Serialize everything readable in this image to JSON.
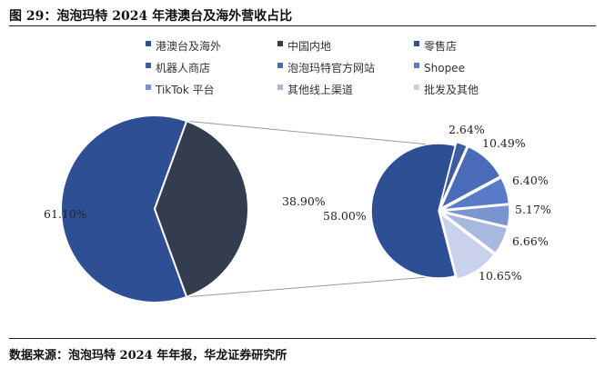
{
  "header": {
    "title": "图 29：泡泡玛特 2024 年港澳台及海外营收占比"
  },
  "footer": {
    "source": "数据来源：泡泡玛特 2024 年年报，华龙证券研究所"
  },
  "chart_data": {
    "type": "pie-of-pie",
    "legend": [
      {
        "name": "港澳台及海外",
        "color": "#2f4f95"
      },
      {
        "name": "中国内地",
        "color": "#333d4f"
      },
      {
        "name": "零售店",
        "color": "#2f4f95"
      },
      {
        "name": "机器人商店",
        "color": "#3d5d9e"
      },
      {
        "name": "泡泡玛特官方网站",
        "color": "#4a6bb8"
      },
      {
        "name": "Shopee",
        "color": "#5a7cc8"
      },
      {
        "name": "TikTok 平台",
        "color": "#7b95d0"
      },
      {
        "name": "其他线上渠道",
        "color": "#a9b8df"
      },
      {
        "name": "批发及其他",
        "color": "#c9d2ea"
      }
    ],
    "main_pie": {
      "slices": [
        {
          "name": "港澳台及海外",
          "value": 61.1,
          "label": "61.10%",
          "color": "#2f4f95"
        },
        {
          "name": "中国内地",
          "value": 38.9,
          "label": "38.90%",
          "color": "#333d4f"
        }
      ]
    },
    "secondary_pie": {
      "slices": [
        {
          "name": "零售店",
          "value": 58.0,
          "label": "58.00%",
          "color": "#2f4f95"
        },
        {
          "name": "机器人商店",
          "value": 2.64,
          "label": "2.64%",
          "color": "#3d5d9e"
        },
        {
          "name": "泡泡玛特官方网站",
          "value": 10.49,
          "label": "10.49%",
          "color": "#4a6bb8"
        },
        {
          "name": "Shopee",
          "value": 6.4,
          "label": "6.40%",
          "color": "#5a7cc8"
        },
        {
          "name": "TikTok 平台",
          "value": 5.17,
          "label": "5.17%",
          "color": "#7b95d0"
        },
        {
          "name": "其他线上渠道",
          "value": 6.66,
          "label": "6.66%",
          "color": "#a9b8df"
        },
        {
          "name": "批发及其他",
          "value": 10.65,
          "label": "10.65%",
          "color": "#c9d2ea"
        }
      ]
    }
  }
}
